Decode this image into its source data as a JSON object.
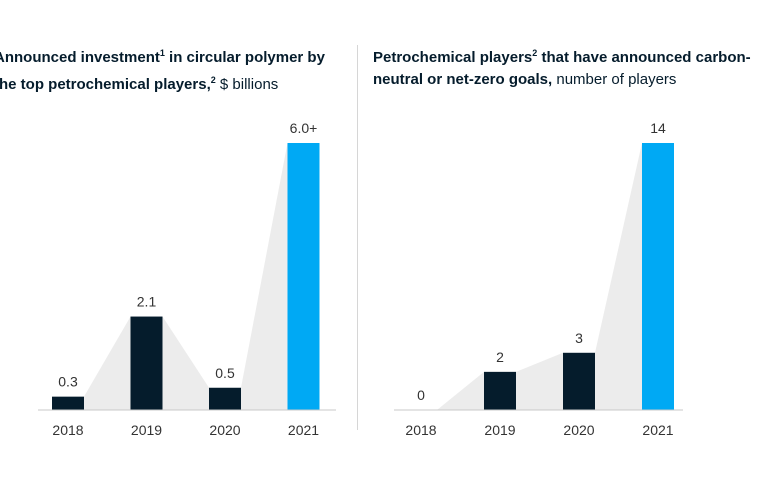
{
  "charts": [
    {
      "title_bold": "Announced investment",
      "title_sup1": "1",
      "title_bold2": " in circular polymer by the top petrochemical players,",
      "title_sup2": "2",
      "title_unit": " $ billions"
    },
    {
      "title_bold": "Petrochemical players",
      "title_sup1": "2",
      "title_bold2": " that have announced carbon-neutral or net-zero goals,",
      "title_sup2": "",
      "title_unit": " number of players"
    }
  ],
  "chart_data": [
    {
      "type": "bar",
      "title": "Announced investment in circular polymer by the top petrochemical players, $ billions",
      "categories": [
        "2018",
        "2019",
        "2020",
        "2021"
      ],
      "values": [
        0.3,
        2.1,
        0.5,
        6.0
      ],
      "value_labels": [
        "0.3",
        "2.1",
        "0.5",
        "6.0+"
      ],
      "ylim": [
        0,
        6.0
      ],
      "colors": [
        "#051c2c",
        "#051c2c",
        "#051c2c",
        "#00a9f4"
      ],
      "connector_color": "#ececec",
      "grid": false
    },
    {
      "type": "bar",
      "title": "Petrochemical players that have announced carbon-neutral or net-zero goals, number of players",
      "categories": [
        "2018",
        "2019",
        "2020",
        "2021"
      ],
      "values": [
        0,
        2,
        3,
        14
      ],
      "value_labels": [
        "0",
        "2",
        "3",
        "14"
      ],
      "ylim": [
        0,
        14
      ],
      "colors": [
        "#051c2c",
        "#051c2c",
        "#051c2c",
        "#00a9f4"
      ],
      "connector_color": "#ececec",
      "grid": false
    }
  ]
}
